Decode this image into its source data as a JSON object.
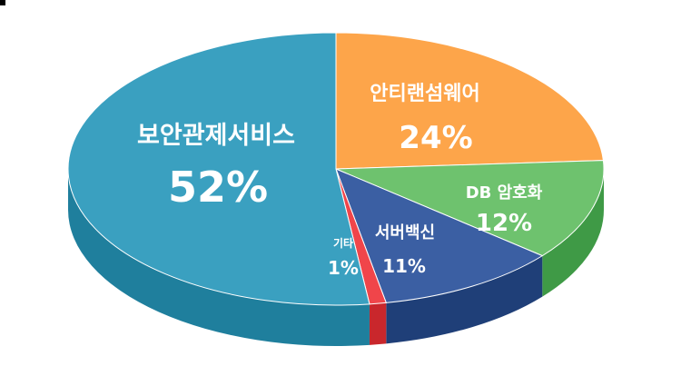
{
  "chart_data": {
    "type": "pie",
    "style": "3d",
    "title": "",
    "slices": [
      {
        "label": "안티랜섬웨어",
        "value": 24,
        "value_text": "24%",
        "color": "#fda54a",
        "side_color": "#e08a32"
      },
      {
        "label": "DB 암호화",
        "value": 12,
        "value_text": "12%",
        "color": "#6ec26e",
        "side_color": "#3f9a46"
      },
      {
        "label": "서버백신",
        "value": 11,
        "value_text": "11%",
        "color": "#3b5fa3",
        "side_color": "#1f3f78"
      },
      {
        "label": "기타",
        "value": 1,
        "value_text": "1%",
        "color": "#f0454a",
        "side_color": "#c9272c"
      },
      {
        "label": "보안관제서비스",
        "value": 52,
        "value_text": "52%",
        "color": "#3aa0c0",
        "side_color": "#1f7f9d"
      }
    ]
  }
}
